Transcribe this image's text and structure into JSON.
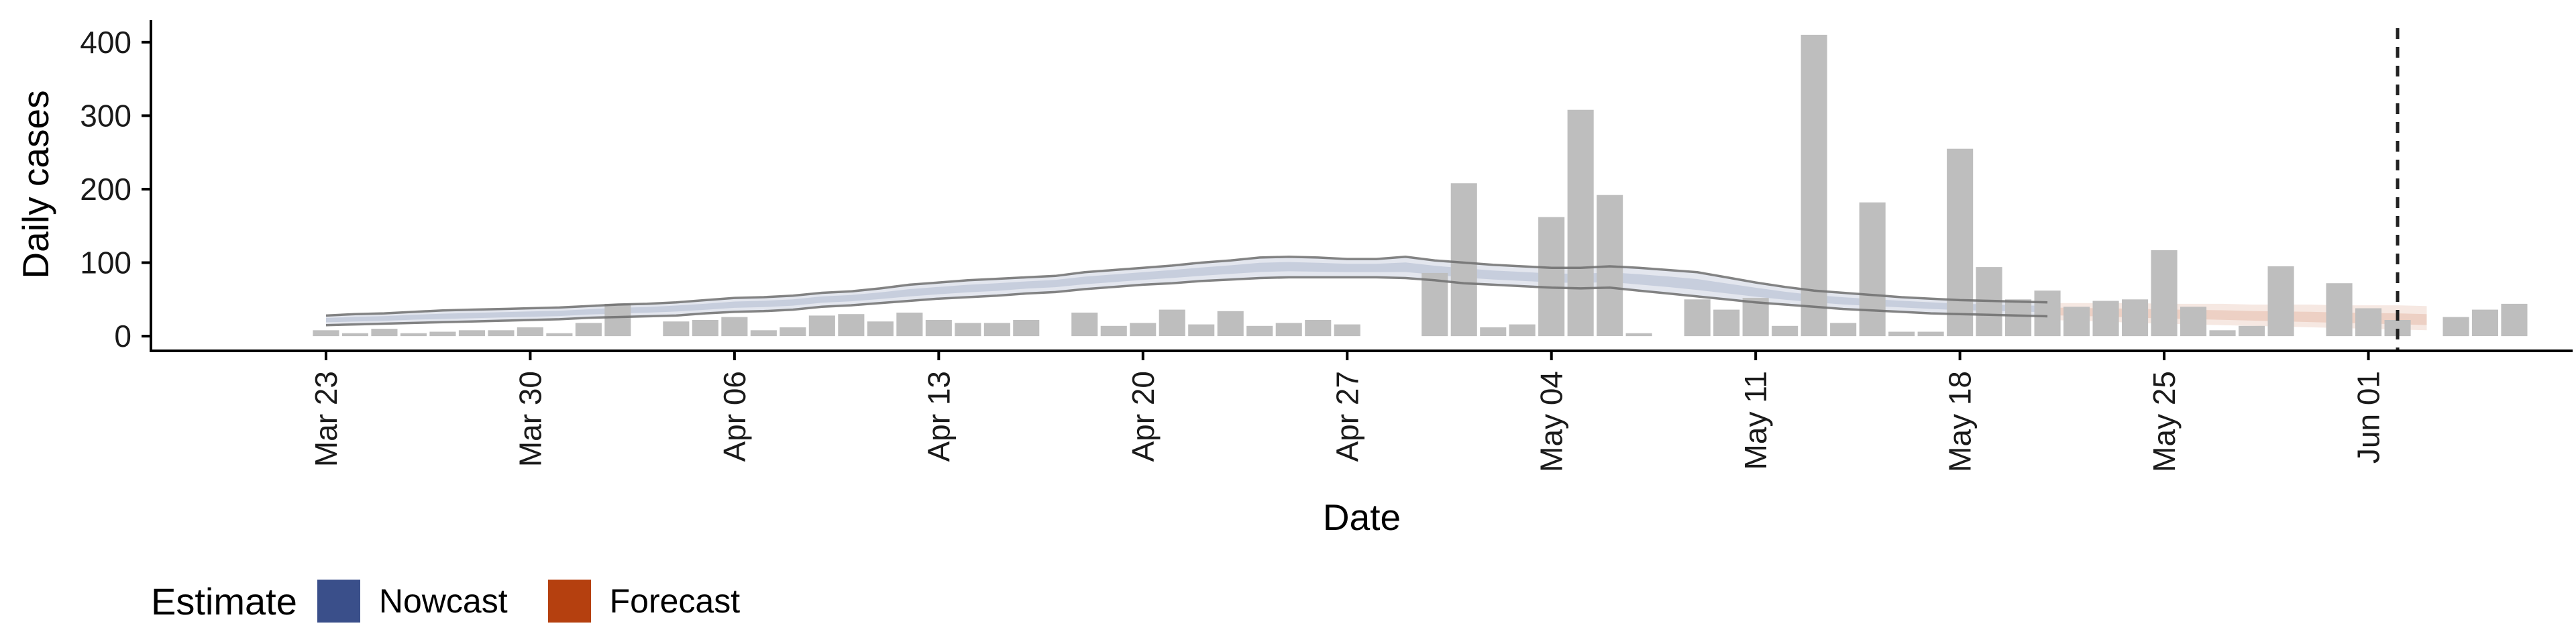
{
  "chart_data": {
    "type": "bar",
    "xlabel": "Date",
    "ylabel": "Daily cases",
    "ylim": [
      -20,
      430
    ],
    "yticks": [
      0,
      100,
      200,
      300,
      400
    ],
    "x_range": [
      "2020-03-17",
      "2020-06-08"
    ],
    "x_tick_dates": [
      "2020-03-23",
      "2020-03-30",
      "2020-04-06",
      "2020-04-13",
      "2020-04-20",
      "2020-04-27",
      "2020-05-04",
      "2020-05-11",
      "2020-05-18",
      "2020-05-25",
      "2020-06-01"
    ],
    "x_tick_labels": [
      "Mar 23",
      "Mar 30",
      "Apr 06",
      "Apr 13",
      "Apr 20",
      "Apr 27",
      "May 04",
      "May 11",
      "May 18",
      "May 25",
      "Jun 01"
    ],
    "colors": {
      "bars": "#bebebe",
      "nowcast": "#3a4f8a",
      "forecast": "#b5400f",
      "band_outline": "#6e6e6e"
    },
    "cases": {
      "start": "2020-03-23",
      "values": [
        8,
        4,
        10,
        4,
        6,
        8,
        8,
        12,
        4,
        18,
        44,
        0,
        20,
        22,
        26,
        8,
        12,
        28,
        30,
        20,
        32,
        22,
        18,
        18,
        22,
        0,
        32,
        14,
        18,
        36,
        16,
        34,
        14,
        18,
        22,
        16,
        0,
        0,
        86,
        208,
        12,
        16,
        162,
        308,
        192,
        4,
        0,
        50,
        36,
        52,
        14,
        410,
        18,
        182,
        6,
        6,
        255,
        94,
        50,
        62,
        40,
        48,
        50,
        117,
        40,
        8,
        14,
        95,
        0,
        72,
        38,
        22,
        0,
        26,
        36,
        44
      ]
    },
    "nowcast": {
      "start": "2020-03-23",
      "upper": [
        28,
        30,
        31,
        33,
        35,
        36,
        37,
        38,
        39,
        41,
        43,
        44,
        46,
        49,
        52,
        53,
        55,
        59,
        61,
        65,
        70,
        73,
        76,
        78,
        80,
        82,
        87,
        90,
        93,
        96,
        100,
        103,
        107,
        108,
        107,
        105,
        105,
        108,
        103,
        100,
        97,
        95,
        93,
        93,
        95,
        93,
        90,
        87,
        80,
        73,
        67,
        62,
        59,
        56,
        53,
        51,
        49,
        48,
        47,
        46
      ],
      "median": [
        22,
        23,
        24,
        26,
        27,
        28,
        29,
        30,
        31,
        33,
        35,
        36,
        38,
        40,
        43,
        44,
        46,
        50,
        52,
        55,
        59,
        62,
        65,
        67,
        70,
        72,
        76,
        79,
        82,
        85,
        88,
        91,
        94,
        95,
        94,
        93,
        93,
        94,
        90,
        86,
        83,
        81,
        79,
        78,
        80,
        77,
        74,
        70,
        65,
        60,
        55,
        51,
        48,
        46,
        44,
        42,
        40,
        39,
        38,
        37
      ],
      "lower": [
        15,
        16,
        17,
        18,
        19,
        20,
        21,
        22,
        23,
        25,
        26,
        27,
        28,
        31,
        33,
        34,
        36,
        40,
        42,
        45,
        48,
        51,
        53,
        55,
        58,
        60,
        64,
        67,
        70,
        72,
        75,
        77,
        79,
        80,
        80,
        80,
        80,
        79,
        76,
        72,
        70,
        68,
        66,
        65,
        66,
        62,
        58,
        54,
        50,
        46,
        43,
        40,
        37,
        35,
        33,
        31,
        30,
        29,
        28,
        27
      ]
    },
    "forecast": {
      "start": "2020-05-21",
      "upper": [
        45,
        45,
        45,
        45,
        44,
        44,
        44,
        43,
        43,
        43,
        42,
        42,
        42,
        41
      ],
      "median": [
        34,
        33,
        32,
        31,
        30,
        29,
        28,
        27,
        26,
        25,
        24,
        23,
        22,
        21
      ],
      "lower": [
        22,
        21,
        20,
        18,
        17,
        16,
        15,
        14,
        13,
        12,
        11,
        10,
        9,
        8
      ]
    },
    "vline_date": "2020-06-02",
    "legend": {
      "title": "Estimate",
      "entries": [
        {
          "label": "Nowcast",
          "color": "#3a4f8a"
        },
        {
          "label": "Forecast",
          "color": "#b5400f"
        }
      ]
    }
  }
}
